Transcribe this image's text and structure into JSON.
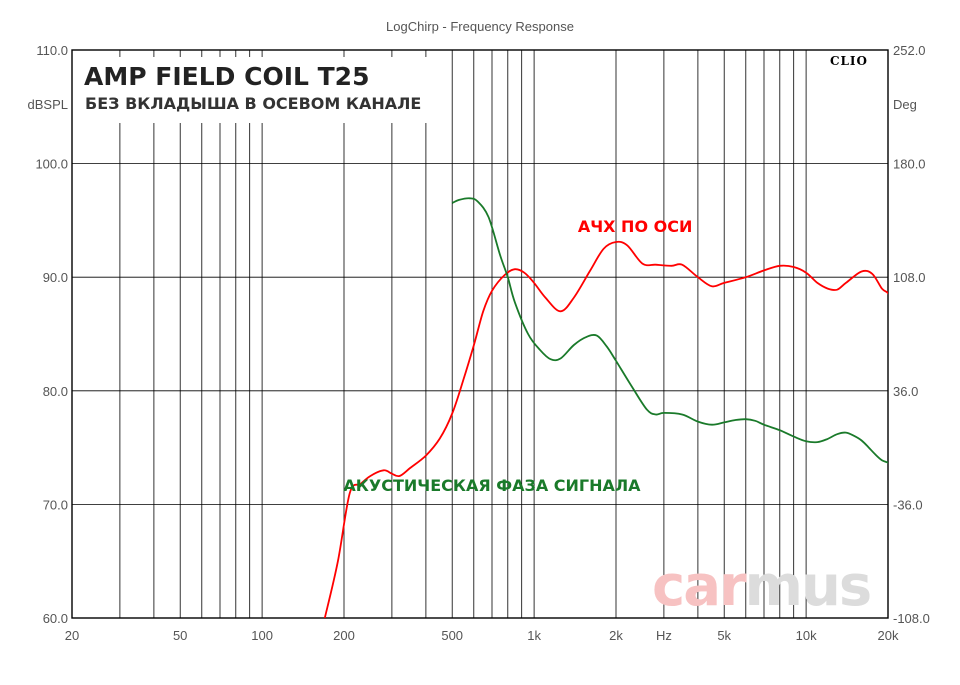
{
  "chart_data": {
    "type": "line",
    "title": "LogChirp - Frequency Response",
    "headline": "AMP FIELD COIL T25",
    "subheadline": "БЕЗ ВКЛАДЫША В ОСЕВОМ КАНАЛЕ",
    "brand": "CLIO",
    "watermark": {
      "part1": "car",
      "part2": "mus"
    },
    "x_axis": {
      "scale": "log",
      "range": [
        20,
        20000
      ],
      "unit_label": "Hz",
      "unit_label_at": 3000,
      "ticks": [
        {
          "value": 20,
          "label": "20"
        },
        {
          "value": 50,
          "label": "50"
        },
        {
          "value": 100,
          "label": "100"
        },
        {
          "value": 200,
          "label": "200"
        },
        {
          "value": 500,
          "label": "500"
        },
        {
          "value": 1000,
          "label": "1k"
        },
        {
          "value": 2000,
          "label": "2k"
        },
        {
          "value": 5000,
          "label": "5k"
        },
        {
          "value": 10000,
          "label": "10k"
        },
        {
          "value": 20000,
          "label": "20k"
        }
      ]
    },
    "y_left": {
      "unit_label": "dBSPL",
      "range": [
        60,
        110
      ],
      "ticks": [
        {
          "value": 110,
          "label": "110.0"
        },
        {
          "value": 100,
          "label": "100.0"
        },
        {
          "value": 90,
          "label": "90.0"
        },
        {
          "value": 80,
          "label": "80.0"
        },
        {
          "value": 70,
          "label": "70.0"
        },
        {
          "value": 60,
          "label": "60.0"
        }
      ]
    },
    "y_right": {
      "unit_label": "Deg",
      "range": [
        -108,
        252
      ],
      "ticks": [
        {
          "value": 252,
          "label": "252.0"
        },
        {
          "value": 180,
          "label": "180.0"
        },
        {
          "value": 108,
          "label": "108.0"
        },
        {
          "value": 36,
          "label": "36.0"
        },
        {
          "value": -36,
          "label": "-36.0"
        },
        {
          "value": -108,
          "label": "-108.0"
        }
      ]
    },
    "grid": true,
    "series": [
      {
        "name": "АЧХ ПО ОСИ",
        "axis": "left",
        "color": "#ff0000",
        "points": [
          [
            170,
            60
          ],
          [
            190,
            65
          ],
          [
            210,
            71
          ],
          [
            230,
            71.8
          ],
          [
            250,
            72.5
          ],
          [
            280,
            73
          ],
          [
            300,
            72.7
          ],
          [
            320,
            72.5
          ],
          [
            350,
            73.2
          ],
          [
            400,
            74.3
          ],
          [
            450,
            75.8
          ],
          [
            500,
            78
          ],
          [
            550,
            81
          ],
          [
            600,
            84
          ],
          [
            650,
            87
          ],
          [
            700,
            88.8
          ],
          [
            780,
            90.2
          ],
          [
            850,
            90.7
          ],
          [
            920,
            90.4
          ],
          [
            1000,
            89.5
          ],
          [
            1100,
            88.2
          ],
          [
            1250,
            87
          ],
          [
            1400,
            88.2
          ],
          [
            1600,
            90.5
          ],
          [
            1800,
            92.5
          ],
          [
            2000,
            93.1
          ],
          [
            2200,
            92.8
          ],
          [
            2500,
            91.2
          ],
          [
            2800,
            91.1
          ],
          [
            3200,
            91
          ],
          [
            3500,
            91.1
          ],
          [
            4000,
            90
          ],
          [
            4500,
            89.2
          ],
          [
            5000,
            89.5
          ],
          [
            6000,
            90
          ],
          [
            7000,
            90.6
          ],
          [
            8000,
            91
          ],
          [
            9000,
            90.9
          ],
          [
            10000,
            90.4
          ],
          [
            11000,
            89.5
          ],
          [
            12000,
            89
          ],
          [
            13000,
            88.9
          ],
          [
            14000,
            89.5
          ],
          [
            16000,
            90.5
          ],
          [
            17500,
            90.3
          ],
          [
            19000,
            89
          ],
          [
            20000,
            88.6
          ],
          [
            21500,
            87.6
          ]
        ]
      },
      {
        "name": "АКУСТИЧЕСКАЯ ФАЗА СИГНАЛА",
        "axis": "right",
        "color": "#1a7a2a",
        "points": [
          [
            500,
            155
          ],
          [
            530,
            157
          ],
          [
            580,
            158
          ],
          [
            620,
            156
          ],
          [
            680,
            146
          ],
          [
            750,
            122
          ],
          [
            800,
            108
          ],
          [
            850,
            92
          ],
          [
            950,
            72
          ],
          [
            1050,
            62
          ],
          [
            1150,
            56
          ],
          [
            1250,
            56.5
          ],
          [
            1400,
            65
          ],
          [
            1550,
            70
          ],
          [
            1700,
            71
          ],
          [
            1850,
            64
          ],
          [
            2000,
            55
          ],
          [
            2300,
            38
          ],
          [
            2600,
            24
          ],
          [
            2800,
            21
          ],
          [
            3000,
            22
          ],
          [
            3500,
            21
          ],
          [
            4000,
            16.5
          ],
          [
            4500,
            14.5
          ],
          [
            5000,
            16
          ],
          [
            5500,
            17.5
          ],
          [
            6000,
            18
          ],
          [
            6500,
            17
          ],
          [
            7000,
            14.5
          ],
          [
            8000,
            11
          ],
          [
            9000,
            7
          ],
          [
            10000,
            4
          ],
          [
            11000,
            3.5
          ],
          [
            12000,
            5.5
          ],
          [
            13000,
            8.5
          ],
          [
            14000,
            9.5
          ],
          [
            15000,
            7.5
          ],
          [
            16000,
            4.5
          ],
          [
            17000,
            0
          ],
          [
            18000,
            -4.5
          ],
          [
            19000,
            -8
          ],
          [
            20000,
            -9.5
          ],
          [
            21500,
            -11.5
          ]
        ]
      }
    ],
    "series_label_positions": {
      "АЧХ ПО ОСИ": {
        "x": 2350,
        "y": 94
      },
      "АКУСТИЧЕСКАЯ ФАЗА СИГНАЛА": {
        "x": 700,
        "y": 71.2
      }
    }
  }
}
